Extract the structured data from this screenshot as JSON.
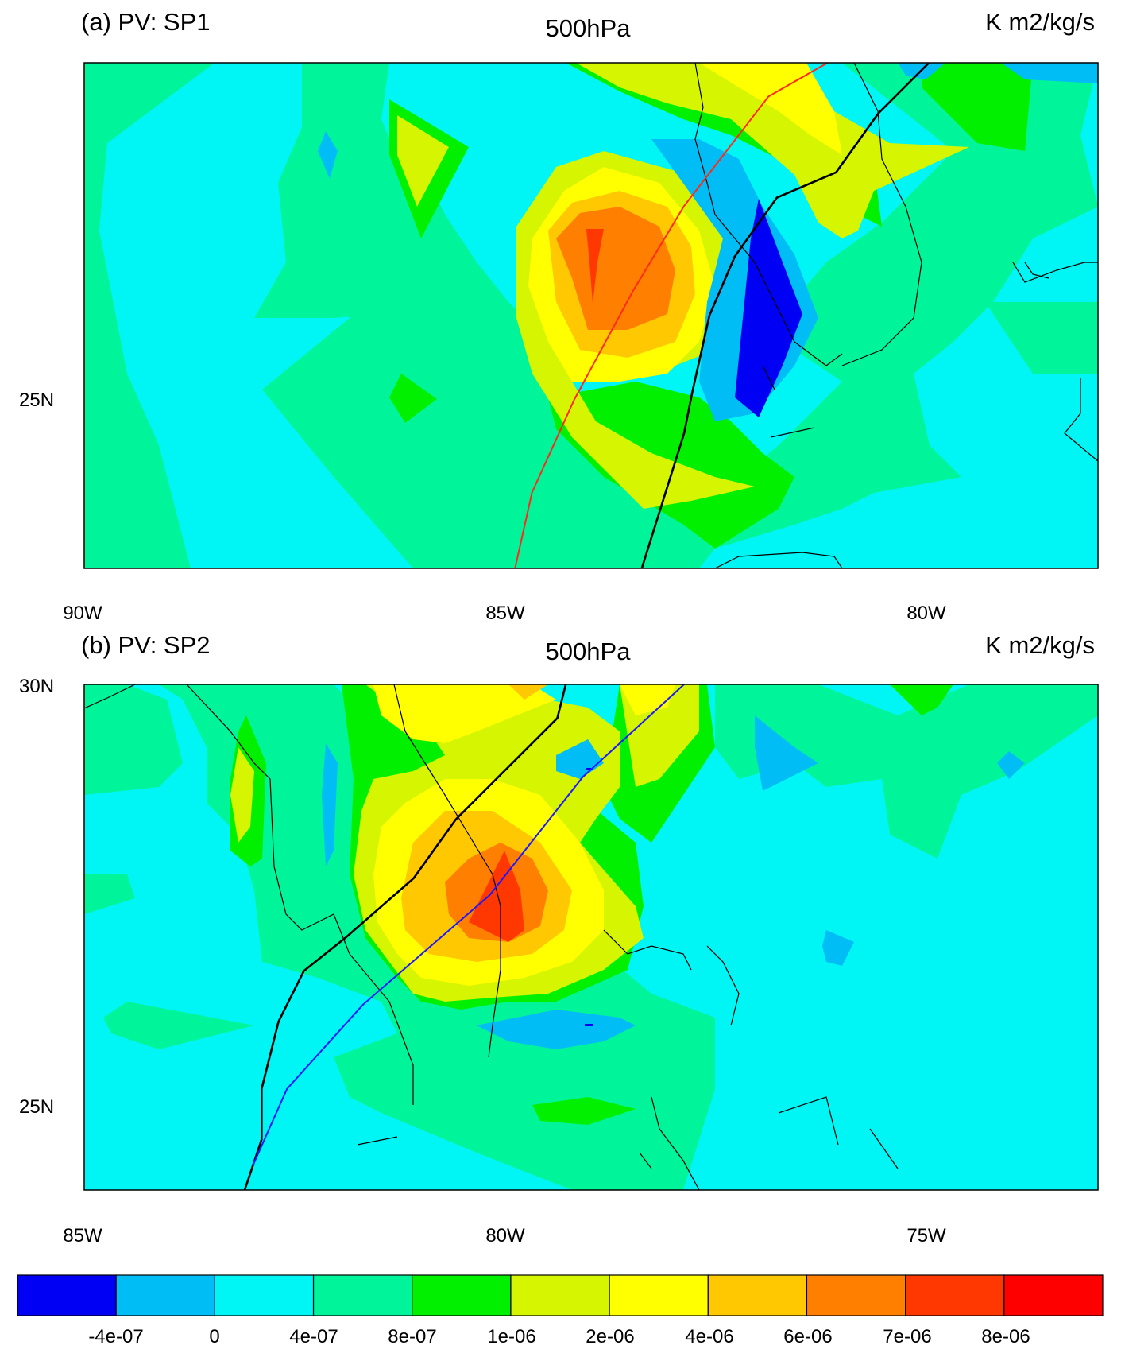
{
  "chart_data": [
    {
      "type": "heatmap",
      "title_left": "(a) PV: SP1",
      "title_center": "500hPa",
      "title_right": "K m2/kg/s",
      "x_ticks": [
        "90W",
        "85W",
        "80W"
      ],
      "y_ticks": [
        "25N"
      ],
      "x_range_deg": [
        -90,
        -78
      ],
      "y_range_deg": [
        23,
        29
      ],
      "tracks": [
        {
          "color": "#ff2a1a",
          "points": [
            [
              -84.9,
              23.0
            ],
            [
              -84.7,
              23.9
            ],
            [
              -84.2,
              25.0
            ],
            [
              -83.5,
              26.3
            ],
            [
              -82.9,
              27.3
            ],
            [
              -81.9,
              28.6
            ],
            [
              -81.2,
              29.0
            ]
          ]
        },
        {
          "color": "#000000",
          "points": [
            [
              -83.4,
              23.0
            ],
            [
              -82.9,
              24.6
            ],
            [
              -82.8,
              25.1
            ],
            [
              -82.6,
              26.0
            ],
            [
              -82.3,
              26.7
            ],
            [
              -81.8,
              27.4
            ],
            [
              -81.1,
              27.7
            ],
            [
              -80.6,
              28.4
            ],
            [
              -80.0,
              29.0
            ]
          ]
        }
      ],
      "pv_levels": [
        {
          "level": "0 to 4e-07",
          "color": "#00f5f5",
          "cells": [
            {
              "lat": 28.5,
              "lon": -89.0
            },
            {
              "lat": 27.0,
              "lon": -86.5
            },
            {
              "lat": 25.0,
              "lon": -87.0
            },
            {
              "lat": 24.5,
              "lon": -84.5
            },
            {
              "lat": 25.5,
              "lon": -80.0
            },
            {
              "lat": 23.5,
              "lon": -82.0
            }
          ]
        },
        {
          "level": "4e-07 to 8e-07",
          "color": "#00f59a",
          "cells": [
            {
              "lat": 27.5,
              "lon": -88.5
            },
            {
              "lat": 26.0,
              "lon": -87.5
            },
            {
              "lat": 26.0,
              "lon": -79.0
            },
            {
              "lat": 28.5,
              "lon": -78.5
            }
          ]
        },
        {
          "level": "1e-06 to 2e-06",
          "color": "#00f000",
          "cells": [
            {
              "lat": 28.0,
              "lon": -86.0
            },
            {
              "lat": 25.0,
              "lon": -86.0
            },
            {
              "lat": 24.2,
              "lon": -82.0
            },
            {
              "lat": 28.5,
              "lon": -79.5
            }
          ]
        },
        {
          "level": "2e-06 to 4e-06",
          "color": "#d6f500",
          "cells": [
            {
              "lat": 28.0,
              "lon": -86.0
            },
            {
              "lat": 24.5,
              "lon": -82.5
            },
            {
              "lat": 28.5,
              "lon": -81.0
            }
          ]
        },
        {
          "level": "4e-06 to 6e-06",
          "color": "#ffff00",
          "cells": [
            {
              "lat": 26.5,
              "lon": -84.0
            },
            {
              "lat": 28.8,
              "lon": -82.0
            }
          ]
        },
        {
          "level": "6e-06 to 7e-06",
          "color": "#ffc800",
          "cells": [
            {
              "lat": 26.5,
              "lon": -84.0
            }
          ]
        },
        {
          "level": "7e-06 to 8e-06",
          "color": "#ff7f00",
          "cells": [
            {
              "lat": 26.5,
              "lon": -84.0
            }
          ]
        },
        {
          "level": "8e-06 to max",
          "color": "#ff3700",
          "cells": [
            {
              "lat": 26.6,
              "lon": -84.2
            }
          ]
        },
        {
          "level": "-4e-07 to 0",
          "color": "#00bef5",
          "cells": [
            {
              "lat": 26.0,
              "lon": -82.0
            }
          ]
        },
        {
          "level": "min to -4e-07",
          "color": "#0000f5",
          "cells": [
            {
              "lat": 25.9,
              "lon": -82.0
            }
          ]
        }
      ]
    },
    {
      "type": "heatmap",
      "title_left": "(b) PV: SP2",
      "title_center": "500hPa",
      "title_right": "K m2/kg/s",
      "x_ticks": [
        "85W",
        "80W",
        "75W"
      ],
      "y_ticks": [
        "30N",
        "25N"
      ],
      "x_range_deg": [
        -85,
        -73
      ],
      "y_range_deg": [
        24,
        30
      ],
      "tracks": [
        {
          "color": "#000000",
          "points": [
            [
              -83.1,
              24.0
            ],
            [
              -82.9,
              24.6
            ],
            [
              -82.9,
              25.2
            ],
            [
              -82.7,
              26.0
            ],
            [
              -82.4,
              26.6
            ],
            [
              -81.9,
              27.0
            ],
            [
              -81.1,
              27.7
            ],
            [
              -80.6,
              28.4
            ],
            [
              -79.4,
              29.6
            ],
            [
              -79.3,
              30.0
            ]
          ]
        },
        {
          "color": "#1a1aff",
          "points": [
            [
              -83.0,
              24.3
            ],
            [
              -82.6,
              25.2
            ],
            [
              -81.7,
              26.2
            ],
            [
              -80.2,
              27.5
            ],
            [
              -79.1,
              28.9
            ],
            [
              -77.9,
              30.0
            ]
          ]
        }
      ],
      "pv_levels": [
        {
          "level": "0 to 4e-07",
          "color": "#00f5f5",
          "cells": [
            {
              "lat": 28.0,
              "lon": -84.0
            },
            {
              "lat": 25.5,
              "lon": -84.5
            },
            {
              "lat": 27.0,
              "lon": -75.0
            },
            {
              "lat": 25.0,
              "lon": -76.5
            }
          ]
        },
        {
          "level": "4e-07 to 8e-07",
          "color": "#00f59a",
          "cells": [
            {
              "lat": 25.8,
              "lon": -80.0
            },
            {
              "lat": 29.0,
              "lon": -77.0
            }
          ]
        },
        {
          "level": "1e-06 to 2e-06",
          "color": "#00f000",
          "cells": [
            {
              "lat": 28.5,
              "lon": -83.0
            },
            {
              "lat": 27.0,
              "lon": -80.0
            }
          ]
        },
        {
          "level": "2e-06 to 4e-06",
          "color": "#d6f500",
          "cells": [
            {
              "lat": 27.0,
              "lon": -80.5
            },
            {
              "lat": 29.7,
              "lon": -79.5
            }
          ]
        },
        {
          "level": "4e-06 to 6e-06",
          "color": "#ffff00",
          "cells": [
            {
              "lat": 27.0,
              "lon": -80.5
            }
          ]
        },
        {
          "level": "6e-06 to 7e-06",
          "color": "#ffc800",
          "cells": [
            {
              "lat": 27.0,
              "lon": -80.5
            }
          ]
        },
        {
          "level": "7e-06 to 8e-06",
          "color": "#ff7f00",
          "cells": [
            {
              "lat": 26.9,
              "lon": -80.3
            }
          ]
        },
        {
          "level": "8e-06 to max",
          "color": "#ff3700",
          "cells": [
            {
              "lat": 26.9,
              "lon": -80.1
            }
          ]
        },
        {
          "level": "-4e-07 to 0",
          "color": "#00bef5",
          "cells": [
            {
              "lat": 28.5,
              "lon": -81.5
            },
            {
              "lat": 25.9,
              "lon": -79.0
            },
            {
              "lat": 28.8,
              "lon": -76.5
            }
          ]
        }
      ]
    }
  ],
  "colorbar": {
    "labels": [
      "-4e-07",
      "0",
      "4e-07",
      "8e-07",
      "1e-06",
      "2e-06",
      "4e-06",
      "6e-06",
      "7e-06",
      "8e-06"
    ],
    "colors": [
      "#0000f5",
      "#00bef5",
      "#00f5f5",
      "#00f59a",
      "#00f000",
      "#d6f500",
      "#ffff00",
      "#ffc800",
      "#ff7f00",
      "#ff3700",
      "#ff0000"
    ]
  }
}
